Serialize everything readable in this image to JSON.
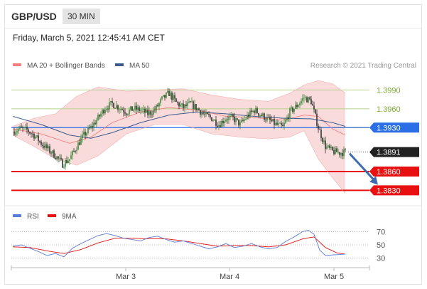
{
  "header": {
    "pair": "GBP/USD",
    "timeframe": "30 MIN"
  },
  "datetime": "Friday, March 5, 2021 12:45:41 AM CET",
  "colors": {
    "ma20": "#f08080",
    "ma50": "#3c5a8c",
    "up": "#3a8d3a",
    "down": "#333333",
    "support": "#e81010",
    "resistance": "#7aa834",
    "pivot": "#2a6fe8",
    "rsi": "#5b7bd6",
    "rsi_ma": "#e81010",
    "band": "#f7cccc",
    "arrow": "#3c6bb0"
  },
  "chart_data": [
    {
      "type": "candlestick",
      "legend": [
        {
          "label": "MA 20 + Bollinger Bands",
          "color": "#f08080"
        },
        {
          "label": "MA 50",
          "color": "#3c5a8c"
        }
      ],
      "credit": "Research © 2021 Trading Central",
      "ylim": [
        1.381,
        1.402
      ],
      "levels": [
        {
          "value": 1.399,
          "label": "1.3990",
          "kind": "resistance"
        },
        {
          "value": 1.396,
          "label": "1.3960",
          "kind": "resistance"
        },
        {
          "value": 1.393,
          "label": "1.3930",
          "kind": "pivot"
        },
        {
          "value": 1.3891,
          "label": "1.3891",
          "kind": "last"
        },
        {
          "value": 1.386,
          "label": "1.3860",
          "kind": "support"
        },
        {
          "value": 1.383,
          "label": "1.3830",
          "kind": "support"
        }
      ],
      "close_path": [
        [
          0,
          1.3924
        ],
        [
          5,
          1.3928
        ],
        [
          10,
          1.3926
        ],
        [
          15,
          1.3918
        ],
        [
          20,
          1.3905
        ],
        [
          25,
          1.3895
        ],
        [
          30,
          1.3885
        ],
        [
          35,
          1.3872
        ],
        [
          40,
          1.388
        ],
        [
          45,
          1.39
        ],
        [
          50,
          1.3918
        ],
        [
          55,
          1.393
        ],
        [
          60,
          1.3945
        ],
        [
          65,
          1.3962
        ],
        [
          70,
          1.3968
        ],
        [
          75,
          1.3962
        ],
        [
          80,
          1.3955
        ],
        [
          85,
          1.396
        ],
        [
          90,
          1.3958
        ],
        [
          95,
          1.3952
        ],
        [
          100,
          1.3958
        ],
        [
          105,
          1.3975
        ],
        [
          110,
          1.3985
        ],
        [
          115,
          1.397
        ],
        [
          120,
          1.3962
        ],
        [
          125,
          1.3968
        ],
        [
          130,
          1.396
        ],
        [
          135,
          1.395
        ],
        [
          140,
          1.3945
        ],
        [
          145,
          1.3935
        ],
        [
          150,
          1.3945
        ],
        [
          155,
          1.3945
        ],
        [
          160,
          1.3935
        ],
        [
          165,
          1.3948
        ],
        [
          170,
          1.3958
        ],
        [
          175,
          1.395
        ],
        [
          180,
          1.3942
        ],
        [
          185,
          1.3935
        ],
        [
          190,
          1.393
        ],
        [
          195,
          1.3955
        ],
        [
          200,
          1.3965
        ],
        [
          205,
          1.3978
        ],
        [
          210,
          1.3972
        ],
        [
          215,
          1.393
        ],
        [
          220,
          1.39
        ],
        [
          225,
          1.3892
        ],
        [
          230,
          1.389
        ],
        [
          234,
          1.3891
        ]
      ],
      "ma20_path": [
        [
          0,
          1.3928
        ],
        [
          20,
          1.392
        ],
        [
          40,
          1.3905
        ],
        [
          55,
          1.3915
        ],
        [
          70,
          1.3938
        ],
        [
          90,
          1.3955
        ],
        [
          110,
          1.3962
        ],
        [
          130,
          1.3958
        ],
        [
          150,
          1.3948
        ],
        [
          170,
          1.3946
        ],
        [
          190,
          1.3942
        ],
        [
          205,
          1.395
        ],
        [
          215,
          1.3948
        ],
        [
          225,
          1.3928
        ],
        [
          234,
          1.3918
        ]
      ],
      "ma50_path": [
        [
          0,
          1.3948
        ],
        [
          20,
          1.3935
        ],
        [
          40,
          1.3918
        ],
        [
          55,
          1.3913
        ],
        [
          70,
          1.3922
        ],
        [
          90,
          1.3938
        ],
        [
          110,
          1.395
        ],
        [
          130,
          1.3955
        ],
        [
          150,
          1.3952
        ],
        [
          170,
          1.3948
        ],
        [
          190,
          1.3945
        ],
        [
          210,
          1.3944
        ],
        [
          225,
          1.3938
        ],
        [
          234,
          1.3932
        ]
      ],
      "band_upper_path": [
        [
          0,
          1.3932
        ],
        [
          15,
          1.3945
        ],
        [
          30,
          1.3952
        ],
        [
          45,
          1.398
        ],
        [
          60,
          1.3995
        ],
        [
          80,
          1.3988
        ],
        [
          100,
          1.399
        ],
        [
          120,
          1.3992
        ],
        [
          140,
          1.3982
        ],
        [
          160,
          1.3975
        ],
        [
          180,
          1.3972
        ],
        [
          195,
          1.3985
        ],
        [
          205,
          1.3998
        ],
        [
          215,
          1.4005
        ],
        [
          225,
          1.4
        ],
        [
          234,
          1.3985
        ]
      ],
      "band_lower_path": [
        [
          0,
          1.3918
        ],
        [
          15,
          1.39
        ],
        [
          30,
          1.388
        ],
        [
          45,
          1.387
        ],
        [
          60,
          1.3885
        ],
        [
          80,
          1.392
        ],
        [
          100,
          1.3935
        ],
        [
          120,
          1.3935
        ],
        [
          140,
          1.392
        ],
        [
          160,
          1.3915
        ],
        [
          180,
          1.3912
        ],
        [
          195,
          1.3915
        ],
        [
          205,
          1.3925
        ],
        [
          215,
          1.388
        ],
        [
          225,
          1.385
        ],
        [
          234,
          1.3825
        ]
      ],
      "forecast": {
        "from": [
          234,
          1.3891
        ],
        "to": [
          250,
          1.3832
        ]
      }
    },
    {
      "type": "line",
      "title": "RSI",
      "legend": [
        {
          "label": "RSI",
          "color": "#5b7bd6"
        },
        {
          "label": "9MA",
          "color": "#e81010"
        }
      ],
      "ylim": [
        20,
        80
      ],
      "y_ticks": [
        "70",
        "50",
        "30"
      ],
      "x_ticks": [
        "Mar 3",
        "Mar 4",
        "Mar 5"
      ],
      "rsi_path": [
        [
          0,
          48
        ],
        [
          6,
          50
        ],
        [
          12,
          45
        ],
        [
          18,
          40
        ],
        [
          24,
          34
        ],
        [
          30,
          37
        ],
        [
          36,
          32
        ],
        [
          42,
          45
        ],
        [
          48,
          52
        ],
        [
          54,
          58
        ],
        [
          60,
          64
        ],
        [
          66,
          67
        ],
        [
          72,
          64
        ],
        [
          78,
          60
        ],
        [
          84,
          58
        ],
        [
          90,
          56
        ],
        [
          96,
          61
        ],
        [
          102,
          63
        ],
        [
          108,
          58
        ],
        [
          114,
          54
        ],
        [
          120,
          56
        ],
        [
          126,
          52
        ],
        [
          132,
          48
        ],
        [
          138,
          44
        ],
        [
          144,
          47
        ],
        [
          150,
          52
        ],
        [
          156,
          46
        ],
        [
          162,
          48
        ],
        [
          168,
          52
        ],
        [
          174,
          47
        ],
        [
          180,
          44
        ],
        [
          186,
          46
        ],
        [
          192,
          55
        ],
        [
          198,
          62
        ],
        [
          204,
          70
        ],
        [
          208,
          72
        ],
        [
          212,
          66
        ],
        [
          216,
          42
        ],
        [
          220,
          34
        ],
        [
          226,
          35
        ],
        [
          234,
          36
        ]
      ],
      "ma_path": [
        [
          0,
          47
        ],
        [
          12,
          46
        ],
        [
          24,
          41
        ],
        [
          36,
          37
        ],
        [
          48,
          43
        ],
        [
          60,
          53
        ],
        [
          72,
          60
        ],
        [
          84,
          60
        ],
        [
          96,
          59
        ],
        [
          108,
          59
        ],
        [
          120,
          56
        ],
        [
          132,
          52
        ],
        [
          144,
          48
        ],
        [
          156,
          49
        ],
        [
          168,
          49
        ],
        [
          180,
          47
        ],
        [
          192,
          50
        ],
        [
          204,
          59
        ],
        [
          212,
          62
        ],
        [
          220,
          46
        ],
        [
          228,
          38
        ],
        [
          234,
          36
        ]
      ]
    }
  ]
}
